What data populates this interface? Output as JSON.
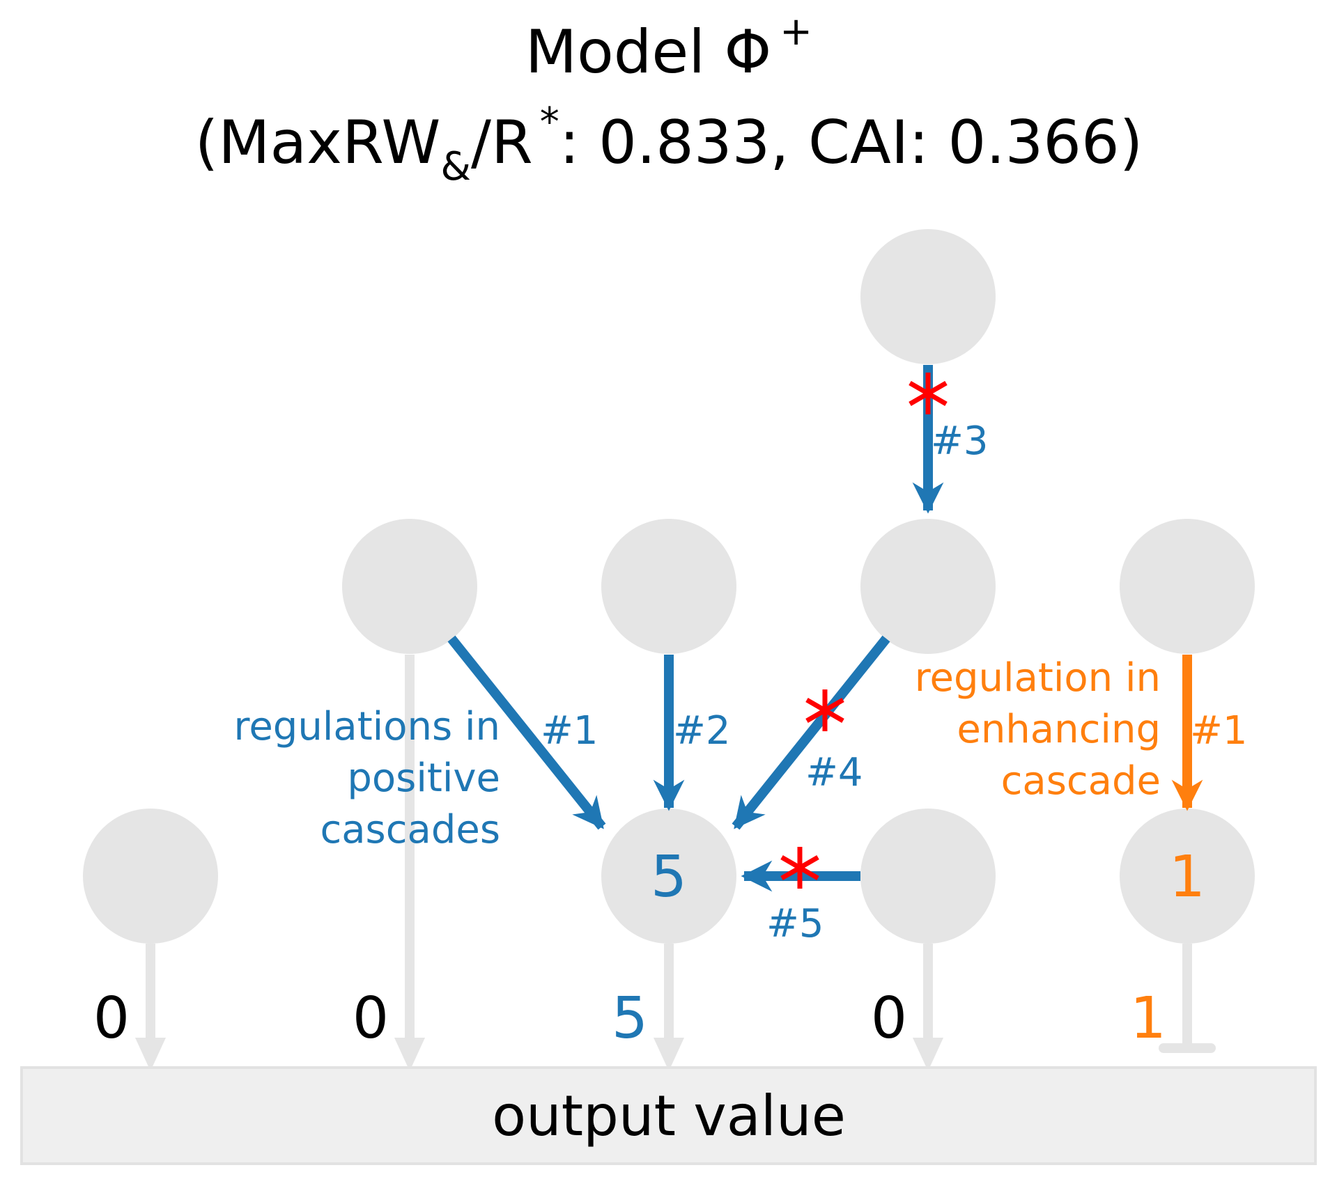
{
  "title": {
    "line1": "Model Φ",
    "line1_sup": "+",
    "line2_open": "(MaxRW",
    "line2_sub": "&",
    "line2_mid": "/R",
    "line2_sup": "*",
    "line2_rest": ": 0.833, CAI: 0.366)"
  },
  "colors": {
    "node_fill": "#e5e5e5",
    "blue": "#1f77b4",
    "orange": "#ff7f0e",
    "red": "#ff0000",
    "grey_edge": "#e5e5e5",
    "output_fill": "#efefef"
  },
  "nodes": {
    "top": {
      "value": ""
    },
    "mid_a": {
      "value": ""
    },
    "mid_b": {
      "value": ""
    },
    "mid_c": {
      "value": ""
    },
    "mid_d": {
      "value": ""
    },
    "bottom_1": {
      "value": ""
    },
    "bottom_2": {
      "value": "5"
    },
    "bottom_3": {
      "value": ""
    },
    "bottom_4": {
      "value": "1"
    }
  },
  "edges": {
    "blue_1": "#1",
    "blue_2": "#2",
    "blue_3": "#3",
    "blue_4": "#4",
    "blue_5": "#5",
    "orange_1": "#1"
  },
  "annotations": {
    "positive": [
      "regulations in",
      "positive",
      "cascades"
    ],
    "enhancing": [
      "regulation in",
      "enhancing",
      "cascade"
    ]
  },
  "outputs": [
    "0",
    "0",
    "5",
    "0",
    "1"
  ],
  "output_box": {
    "label": "output value"
  }
}
